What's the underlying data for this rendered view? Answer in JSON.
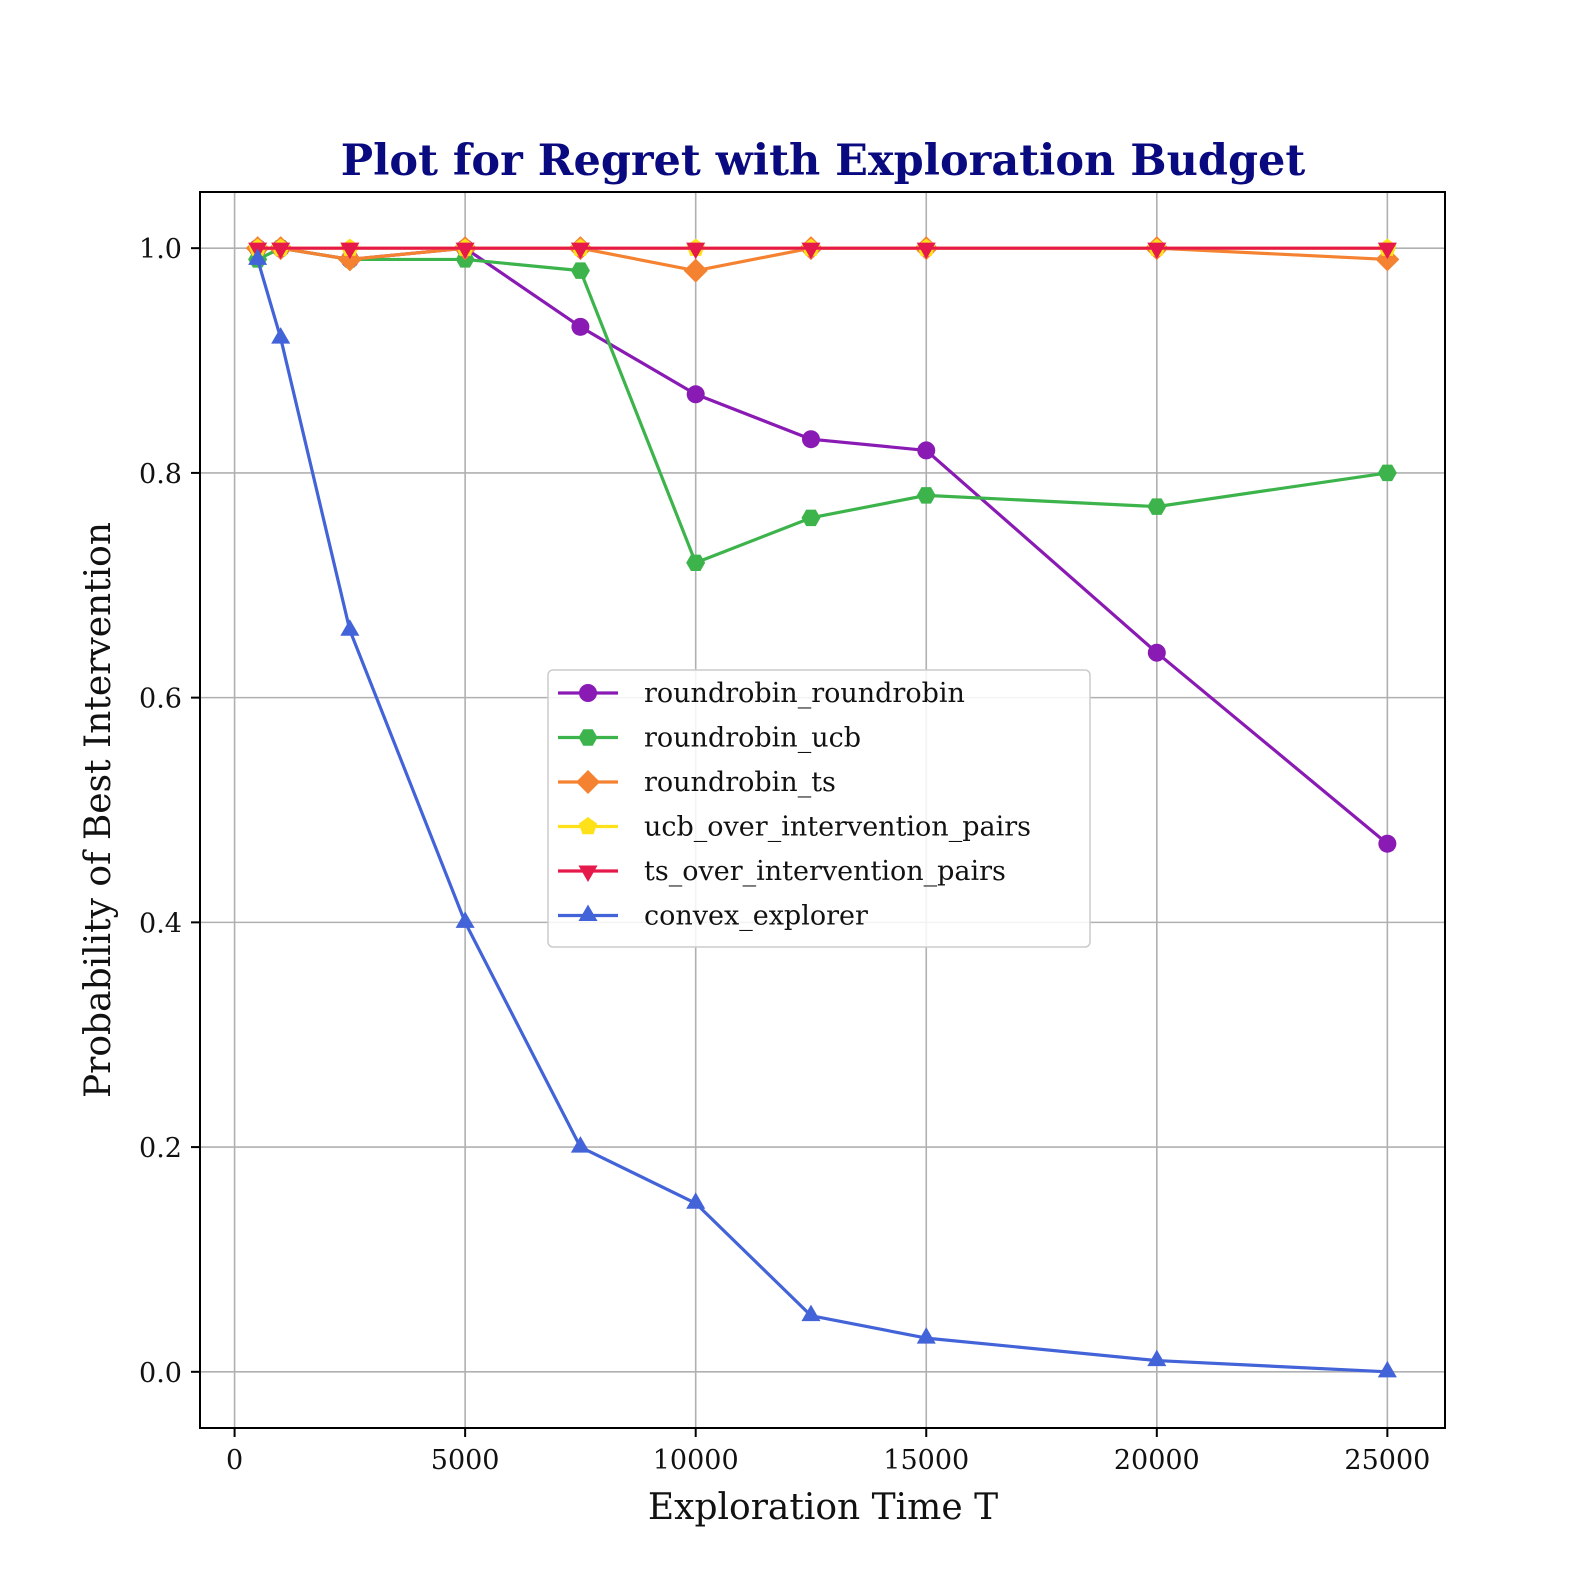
{
  "chart_data": {
    "type": "line",
    "title": "Plot for Regret with Exploration Budget",
    "xlabel": "Exploration Time T",
    "ylabel": "Probability of Best Intervention",
    "xlim": [
      -750,
      26250
    ],
    "ylim": [
      -0.05,
      1.05
    ],
    "x_ticks": [
      0,
      5000,
      10000,
      15000,
      20000,
      25000
    ],
    "y_ticks": [
      0.0,
      0.2,
      0.4,
      0.6,
      0.8,
      1.0
    ],
    "x_tick_labels": [
      "0",
      "5000",
      "10000",
      "15000",
      "20000",
      "25000"
    ],
    "y_tick_labels": [
      "0.0",
      "0.2",
      "0.4",
      "0.6",
      "0.8",
      "1.0"
    ],
    "grid": true,
    "legend_position": "center",
    "x": [
      500,
      1000,
      2500,
      5000,
      7500,
      10000,
      12500,
      15000,
      20000,
      25000
    ],
    "series": [
      {
        "name": "roundrobin_roundrobin",
        "color": "#8a1ab4",
        "marker": "circle",
        "values": [
          1.0,
          1.0,
          0.99,
          1.0,
          0.93,
          0.87,
          0.83,
          0.82,
          0.64,
          0.47
        ]
      },
      {
        "name": "roundrobin_ucb",
        "color": "#3cb44b",
        "marker": "hexagon",
        "values": [
          0.99,
          1.0,
          0.99,
          0.99,
          0.98,
          0.72,
          0.76,
          0.78,
          0.77,
          0.8
        ]
      },
      {
        "name": "roundrobin_ts",
        "color": "#f58231",
        "marker": "diamond",
        "values": [
          1.0,
          1.0,
          0.99,
          1.0,
          1.0,
          0.98,
          1.0,
          1.0,
          1.0,
          0.99
        ]
      },
      {
        "name": "ucb_over_intervention_pairs",
        "color": "#ffe119",
        "marker": "pentagon",
        "values": [
          1.0,
          1.0,
          1.0,
          1.0,
          1.0,
          1.0,
          1.0,
          1.0,
          1.0,
          1.0
        ]
      },
      {
        "name": "ts_over_intervention_pairs",
        "color": "#e6194b",
        "marker": "triangle-down",
        "values": [
          1.0,
          1.0,
          1.0,
          1.0,
          1.0,
          1.0,
          1.0,
          1.0,
          1.0,
          1.0
        ]
      },
      {
        "name": "convex_explorer",
        "color": "#4363d8",
        "marker": "triangle-up",
        "values": [
          0.99,
          0.92,
          0.66,
          0.4,
          0.2,
          0.15,
          0.05,
          0.03,
          0.01,
          0.0
        ]
      }
    ]
  }
}
